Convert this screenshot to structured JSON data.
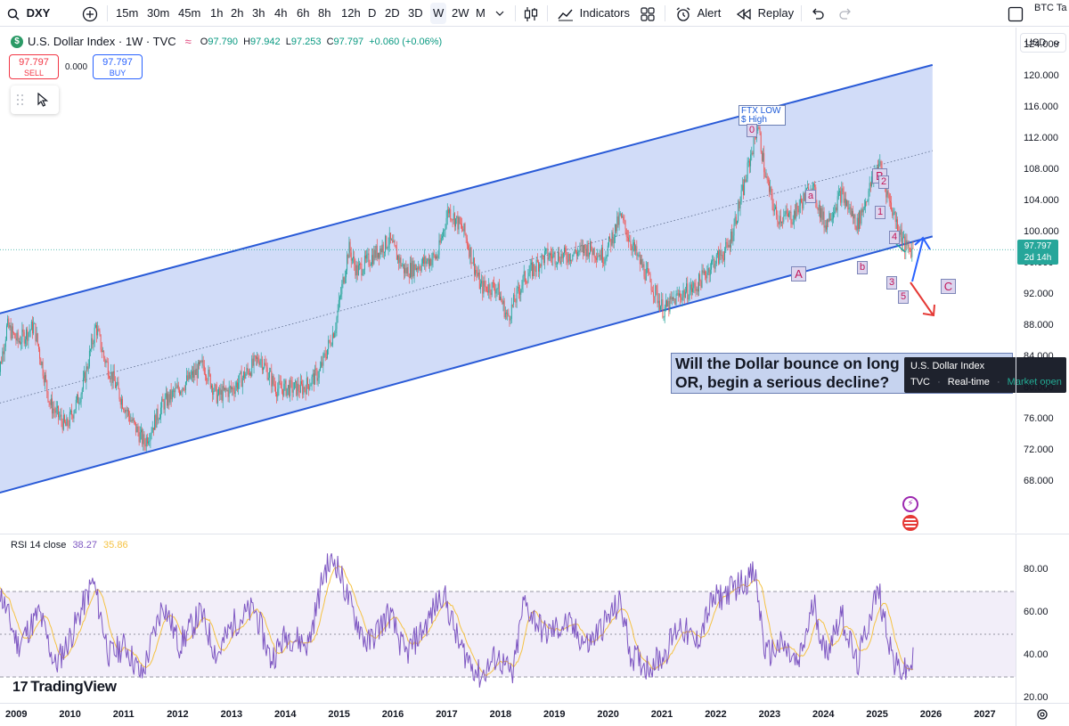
{
  "toolbar": {
    "symbol": "DXY",
    "intervals": [
      "15m",
      "30m",
      "45m",
      "1h",
      "2h",
      "3h",
      "4h",
      "6h",
      "8h",
      "12h",
      "D",
      "2D",
      "3D",
      "W",
      "2W",
      "M"
    ],
    "active_interval": "W",
    "indicators_label": "Indicators",
    "alert_label": "Alert",
    "replay_label": "Replay",
    "right_symbol": "BTC Ta"
  },
  "legend": {
    "logo_letter": "$",
    "title": "U.S. Dollar Index · 1W · TVC",
    "o_label": "O",
    "o_value": "97.790",
    "h_label": "H",
    "h_value": "97.942",
    "l_label": "L",
    "l_value": "97.253",
    "c_label": "C",
    "c_value": "97.797",
    "change": "+0.060 (+0.06%)"
  },
  "trade": {
    "sell_price": "97.797",
    "sell_label": "SELL",
    "spread": "0.000",
    "buy_price": "97.797",
    "buy_label": "BUY"
  },
  "price_scale": {
    "currency": "USD",
    "ticks": [
      "124.000",
      "120.000",
      "116.000",
      "112.000",
      "108.000",
      "104.000",
      "100.000",
      "96.000",
      "92.000",
      "88.000",
      "84.000",
      "80.000",
      "76.000",
      "72.000",
      "68.000"
    ],
    "last_price": "97.797",
    "countdown": "2d 14h"
  },
  "annotation": {
    "line1": "Will the Dollar bounce on long held support",
    "line2": "OR, begin a serious decline?",
    "ftx_line1": "FTX LOW",
    "ftx_line2": "$ High"
  },
  "waves": [
    "0",
    "a",
    "A",
    "b",
    "B",
    "2",
    "1",
    "4",
    "3",
    "5",
    "C"
  ],
  "tooltip": {
    "title": "U.S. Dollar Index",
    "source": "TVC",
    "feed": "Real-time",
    "status": "Market open"
  },
  "rsi": {
    "label": "RSI 14 close",
    "value1": "38.27",
    "value2": "35.86",
    "ticks": [
      "80.00",
      "60.00",
      "40.00",
      "20.00"
    ],
    "upper_band": 70,
    "lower_band": 30
  },
  "time_axis": [
    "2009",
    "2010",
    "2011",
    "2012",
    "2013",
    "2014",
    "2015",
    "2016",
    "2017",
    "2018",
    "2019",
    "2020",
    "2021",
    "2022",
    "2023",
    "2024",
    "2025",
    "2026",
    "2027"
  ],
  "watermark": "TradingView",
  "colors": {
    "channel_fill": "#c9d6f7",
    "channel_line": "#2a5bd7",
    "up_candle": "#26a69a",
    "down_candle": "#ef5350",
    "rsi_line": "#7e57c2",
    "rsi_ma": "#f5c242",
    "bounce_arrow": "#2962ff",
    "decline_arrow": "#e53935"
  },
  "chart_data": {
    "type": "candlestick",
    "title": "U.S. Dollar Index · 1W · TVC",
    "ylim": [
      64,
      128
    ],
    "x_range": [
      "2009",
      "2027"
    ],
    "close_path": [
      [
        2008.6,
        80
      ],
      [
        2008.8,
        88
      ],
      [
        2009.0,
        86
      ],
      [
        2009.3,
        88
      ],
      [
        2009.6,
        78
      ],
      [
        2009.9,
        75
      ],
      [
        2010.2,
        80
      ],
      [
        2010.45,
        88
      ],
      [
        2010.6,
        84
      ],
      [
        2010.9,
        79
      ],
      [
        2011.1,
        76
      ],
      [
        2011.35,
        73
      ],
      [
        2011.7,
        78
      ],
      [
        2012.0,
        80
      ],
      [
        2012.45,
        83
      ],
      [
        2012.7,
        79
      ],
      [
        2013.0,
        80
      ],
      [
        2013.5,
        84
      ],
      [
        2013.8,
        80
      ],
      [
        2014.0,
        80
      ],
      [
        2014.3,
        80
      ],
      [
        2014.6,
        82
      ],
      [
        2014.9,
        88
      ],
      [
        2015.15,
        98
      ],
      [
        2015.3,
        95
      ],
      [
        2015.6,
        97
      ],
      [
        2015.9,
        99
      ],
      [
        2016.2,
        95
      ],
      [
        2016.5,
        96
      ],
      [
        2016.8,
        97
      ],
      [
        2017.0,
        103
      ],
      [
        2017.3,
        100
      ],
      [
        2017.6,
        93
      ],
      [
        2017.9,
        93
      ],
      [
        2018.1,
        89
      ],
      [
        2018.4,
        94
      ],
      [
        2018.8,
        97
      ],
      [
        2019.2,
        97
      ],
      [
        2019.6,
        98
      ],
      [
        2019.9,
        97
      ],
      [
        2020.2,
        102
      ],
      [
        2020.5,
        97
      ],
      [
        2020.8,
        93
      ],
      [
        2021.0,
        90
      ],
      [
        2021.3,
        92
      ],
      [
        2021.6,
        93
      ],
      [
        2021.9,
        96
      ],
      [
        2022.2,
        98
      ],
      [
        2022.5,
        106
      ],
      [
        2022.75,
        114
      ],
      [
        2022.9,
        107
      ],
      [
        2023.1,
        102
      ],
      [
        2023.4,
        102
      ],
      [
        2023.75,
        106
      ],
      [
        2024.0,
        101
      ],
      [
        2024.3,
        105
      ],
      [
        2024.6,
        101
      ],
      [
        2024.9,
        107
      ],
      [
        2025.0,
        109
      ],
      [
        2025.2,
        104
      ],
      [
        2025.5,
        98
      ],
      [
        2025.65,
        97.8
      ]
    ],
    "channel": {
      "upper": [
        [
          2008.6,
          89.5
        ],
        [
          2026.0,
          121.5
        ]
      ],
      "lower": [
        [
          2008.6,
          66.5
        ],
        [
          2026.0,
          99.5
        ]
      ],
      "mid": [
        [
          2008.6,
          78
        ],
        [
          2026.0,
          110.5
        ]
      ]
    },
    "rsi_path": [
      [
        2008.6,
        75
      ],
      [
        2009.0,
        45
      ],
      [
        2009.4,
        60
      ],
      [
        2009.7,
        35
      ],
      [
        2010.0,
        50
      ],
      [
        2010.4,
        75
      ],
      [
        2010.7,
        40
      ],
      [
        2011.0,
        45
      ],
      [
        2011.3,
        30
      ],
      [
        2011.7,
        65
      ],
      [
        2012.0,
        45
      ],
      [
        2012.4,
        60
      ],
      [
        2012.7,
        40
      ],
      [
        2013.0,
        55
      ],
      [
        2013.4,
        62
      ],
      [
        2013.7,
        38
      ],
      [
        2014.0,
        50
      ],
      [
        2014.4,
        45
      ],
      [
        2014.7,
        80
      ],
      [
        2014.9,
        85
      ],
      [
        2015.2,
        62
      ],
      [
        2015.5,
        45
      ],
      [
        2015.9,
        60
      ],
      [
        2016.2,
        40
      ],
      [
        2016.6,
        55
      ],
      [
        2016.9,
        70
      ],
      [
        2017.2,
        45
      ],
      [
        2017.6,
        30
      ],
      [
        2017.9,
        40
      ],
      [
        2018.2,
        30
      ],
      [
        2018.4,
        65
      ],
      [
        2018.8,
        50
      ],
      [
        2019.2,
        55
      ],
      [
        2019.6,
        45
      ],
      [
        2019.9,
        55
      ],
      [
        2020.2,
        65
      ],
      [
        2020.4,
        40
      ],
      [
        2020.7,
        35
      ],
      [
        2021.0,
        40
      ],
      [
        2021.3,
        55
      ],
      [
        2021.6,
        45
      ],
      [
        2021.9,
        65
      ],
      [
        2022.2,
        70
      ],
      [
        2022.5,
        75
      ],
      [
        2022.7,
        78
      ],
      [
        2022.9,
        40
      ],
      [
        2023.2,
        45
      ],
      [
        2023.5,
        35
      ],
      [
        2023.8,
        65
      ],
      [
        2024.0,
        40
      ],
      [
        2024.3,
        60
      ],
      [
        2024.6,
        35
      ],
      [
        2024.9,
        65
      ],
      [
        2025.0,
        70
      ],
      [
        2025.3,
        35
      ],
      [
        2025.5,
        32
      ],
      [
        2025.65,
        38
      ]
    ]
  }
}
